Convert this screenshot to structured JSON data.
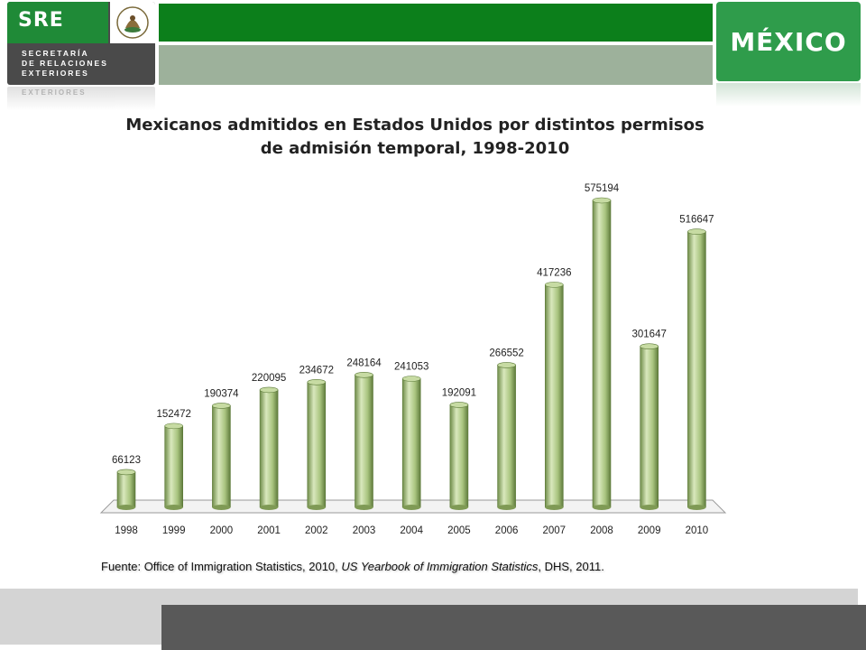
{
  "header": {
    "sre_label": "SRE",
    "department": "SECRETARÍA\nDE RELACIONES\nEXTERIORES",
    "department_reflection": "EXTERIORES",
    "country_label": "MÉXICO"
  },
  "colors": {
    "header_green": "#0c7f1b",
    "header_sage": "#9db19b",
    "bar_fill": "#a9c47f",
    "bar_dark": "#6f8c49",
    "bar_light": "#d9e8bd"
  },
  "source": {
    "prefix": "Fuente: Office of Immigration Statistics, 2010, ",
    "italic": "US Yearbook of Immigration Statistics",
    "suffix": ", DHS, 2011."
  },
  "chart_data": {
    "type": "bar",
    "title": "Mexicanos admitidos en Estados Unidos por distintos permisos\nde admisión temporal, 1998-2010",
    "categories": [
      "1998",
      "1999",
      "2000",
      "2001",
      "2002",
      "2003",
      "2004",
      "2005",
      "2006",
      "2007",
      "2008",
      "2009",
      "2010"
    ],
    "values": [
      66123,
      152472,
      190374,
      220095,
      234672,
      248164,
      241053,
      192091,
      266552,
      417236,
      575194,
      301647,
      516647
    ],
    "ylim": [
      0,
      600000
    ],
    "grid": false,
    "legend": "none",
    "data_labels": true,
    "style": "3d-cylinder"
  }
}
